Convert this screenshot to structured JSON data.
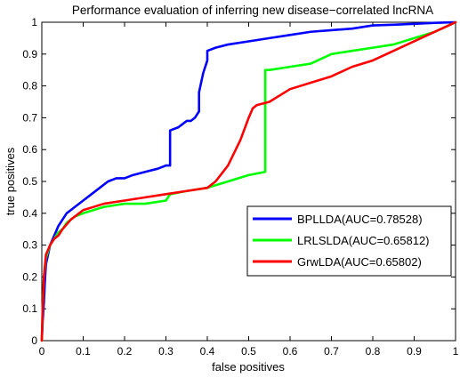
{
  "chart_data": {
    "type": "line",
    "title": "Performance evaluation of inferring new disease−correlated lncRNA",
    "xlabel": "false positives",
    "ylabel": "true positives",
    "xlim": [
      0,
      1
    ],
    "ylim": [
      0,
      1
    ],
    "xticks": [
      "0",
      "0.1",
      "0.2",
      "0.3",
      "0.4",
      "0.5",
      "0.6",
      "0.7",
      "0.8",
      "0.9",
      "1"
    ],
    "yticks": [
      "0",
      "0.1",
      "0.2",
      "0.3",
      "0.4",
      "0.5",
      "0.6",
      "0.7",
      "0.8",
      "0.9",
      "1"
    ],
    "grid": false,
    "legend_position": "right",
    "series": [
      {
        "name": "BPLLDA(AUC=0.78528)",
        "color": "#0000ff",
        "x": [
          0,
          0.002,
          0.005,
          0.008,
          0.01,
          0.015,
          0.02,
          0.03,
          0.04,
          0.05,
          0.06,
          0.07,
          0.08,
          0.1,
          0.12,
          0.14,
          0.16,
          0.18,
          0.2,
          0.22,
          0.25,
          0.28,
          0.3,
          0.31,
          0.31,
          0.33,
          0.34,
          0.35,
          0.36,
          0.37,
          0.38,
          0.38,
          0.39,
          0.4,
          0.4,
          0.42,
          0.45,
          0.5,
          0.55,
          0.6,
          0.65,
          0.7,
          0.75,
          0.8,
          0.85,
          0.9,
          0.95,
          1.0
        ],
        "y": [
          0,
          0.06,
          0.12,
          0.2,
          0.24,
          0.27,
          0.3,
          0.33,
          0.36,
          0.38,
          0.4,
          0.41,
          0.42,
          0.44,
          0.46,
          0.48,
          0.5,
          0.51,
          0.51,
          0.52,
          0.53,
          0.54,
          0.55,
          0.55,
          0.66,
          0.67,
          0.68,
          0.69,
          0.69,
          0.7,
          0.72,
          0.78,
          0.84,
          0.88,
          0.91,
          0.92,
          0.93,
          0.94,
          0.95,
          0.96,
          0.97,
          0.975,
          0.98,
          0.99,
          0.992,
          0.995,
          0.998,
          1.0
        ]
      },
      {
        "name": "LRLSLDA(AUC=0.65812)",
        "color": "#00ff00",
        "x": [
          0,
          0.002,
          0.005,
          0.01,
          0.02,
          0.03,
          0.04,
          0.05,
          0.06,
          0.08,
          0.1,
          0.15,
          0.2,
          0.25,
          0.3,
          0.31,
          0.35,
          0.4,
          0.45,
          0.5,
          0.54,
          0.54,
          0.55,
          0.6,
          0.65,
          0.7,
          0.75,
          0.8,
          0.85,
          0.9,
          0.95,
          1.0
        ],
        "y": [
          0,
          0.1,
          0.2,
          0.26,
          0.3,
          0.32,
          0.34,
          0.35,
          0.37,
          0.39,
          0.4,
          0.42,
          0.43,
          0.43,
          0.44,
          0.46,
          0.47,
          0.48,
          0.5,
          0.52,
          0.53,
          0.85,
          0.85,
          0.86,
          0.87,
          0.9,
          0.91,
          0.92,
          0.93,
          0.95,
          0.97,
          1.0
        ]
      },
      {
        "name": "GrwLDA(AUC=0.65802)",
        "color": "#ff0000",
        "x": [
          0,
          0.002,
          0.005,
          0.01,
          0.02,
          0.03,
          0.04,
          0.05,
          0.07,
          0.1,
          0.15,
          0.2,
          0.25,
          0.3,
          0.35,
          0.4,
          0.42,
          0.45,
          0.48,
          0.5,
          0.51,
          0.52,
          0.55,
          0.6,
          0.65,
          0.7,
          0.75,
          0.8,
          0.85,
          0.9,
          0.95,
          1.0
        ],
        "y": [
          0,
          0.1,
          0.2,
          0.27,
          0.3,
          0.32,
          0.33,
          0.35,
          0.38,
          0.41,
          0.43,
          0.44,
          0.45,
          0.46,
          0.47,
          0.48,
          0.5,
          0.55,
          0.63,
          0.7,
          0.73,
          0.74,
          0.75,
          0.79,
          0.81,
          0.83,
          0.86,
          0.88,
          0.91,
          0.94,
          0.97,
          1.0
        ]
      }
    ]
  }
}
